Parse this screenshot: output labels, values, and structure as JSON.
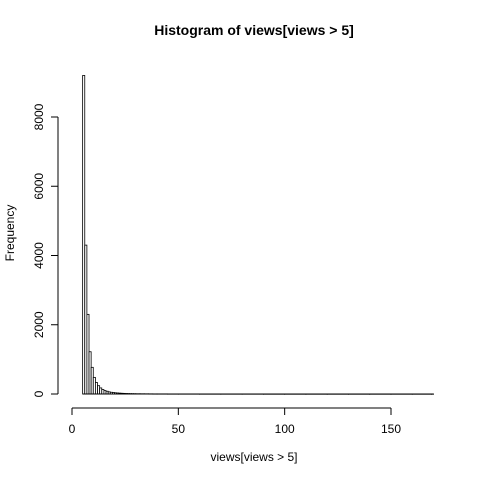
{
  "chart_data": {
    "type": "bar",
    "title": "Histogram of views[views > 5]",
    "xlabel": "views[views > 5]",
    "ylabel": "Frequency",
    "xlim": [
      0,
      170
    ],
    "ylim": [
      0,
      9200
    ],
    "xticks": [
      0,
      50,
      100,
      150
    ],
    "yticks": [
      0,
      2000,
      4000,
      6000,
      8000
    ],
    "bin_width": 1,
    "bins_start": [
      5,
      6,
      7,
      8,
      9,
      10,
      11,
      12,
      13,
      14,
      15,
      16,
      17,
      18,
      19,
      20,
      21,
      22,
      23,
      24,
      25,
      26,
      27,
      28,
      29,
      30,
      32,
      34,
      36,
      38,
      40,
      45,
      50,
      60,
      70,
      80,
      90,
      100,
      110,
      120,
      130,
      140,
      150,
      160,
      169
    ],
    "values": [
      9200,
      4300,
      2300,
      1220,
      770,
      480,
      330,
      240,
      175,
      130,
      100,
      80,
      62,
      50,
      42,
      35,
      30,
      25,
      21,
      18,
      15,
      13,
      11,
      10,
      9,
      8,
      7,
      6,
      5,
      4,
      4,
      3,
      3,
      2,
      2,
      2,
      1,
      1,
      1,
      1,
      1,
      1,
      1,
      1,
      1
    ]
  }
}
